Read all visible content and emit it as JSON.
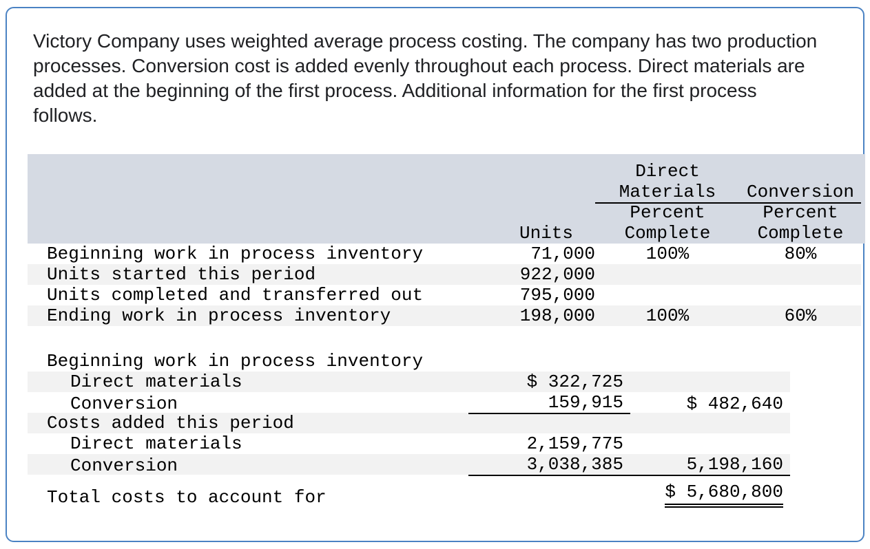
{
  "intro": {
    "text": "Victory Company uses weighted average process costing. The company has two production processes. Conversion cost is added evenly throughout each process. Direct materials are added at the beginning of the first process. Additional information for the first process follows."
  },
  "table": {
    "header": {
      "direct": "Direct",
      "materials": "Materials",
      "conversion": "Conversion",
      "percent": "Percent",
      "complete": "Complete",
      "units": "Units"
    },
    "unit_rows": [
      {
        "label": "Beginning work in process inventory",
        "units": "71,000",
        "dm_pct": "100%",
        "conv_pct": "80%"
      },
      {
        "label": "Units started this period",
        "units": "922,000",
        "dm_pct": "",
        "conv_pct": ""
      },
      {
        "label": "Units completed and transferred out",
        "units": "795,000",
        "dm_pct": "",
        "conv_pct": ""
      },
      {
        "label": "Ending work in process inventory",
        "units": "198,000",
        "dm_pct": "100%",
        "conv_pct": "60%"
      }
    ],
    "cost_rows": [
      {
        "label": "Beginning work in process inventory",
        "col1": "",
        "col2": ""
      },
      {
        "label": "Direct materials",
        "col1": "$ 322,725",
        "col2": ""
      },
      {
        "label": "Conversion",
        "col1": "159,915",
        "col2": "$ 482,640"
      },
      {
        "label": "Costs added this period",
        "col1": "",
        "col2": ""
      },
      {
        "label": "Direct materials",
        "col1": "2,159,775",
        "col2": ""
      },
      {
        "label": "Conversion",
        "col1": "3,038,385",
        "col2": "5,198,160"
      },
      {
        "label": "Total costs to account for",
        "col1": "",
        "col2": "$ 5,680,800"
      }
    ]
  }
}
